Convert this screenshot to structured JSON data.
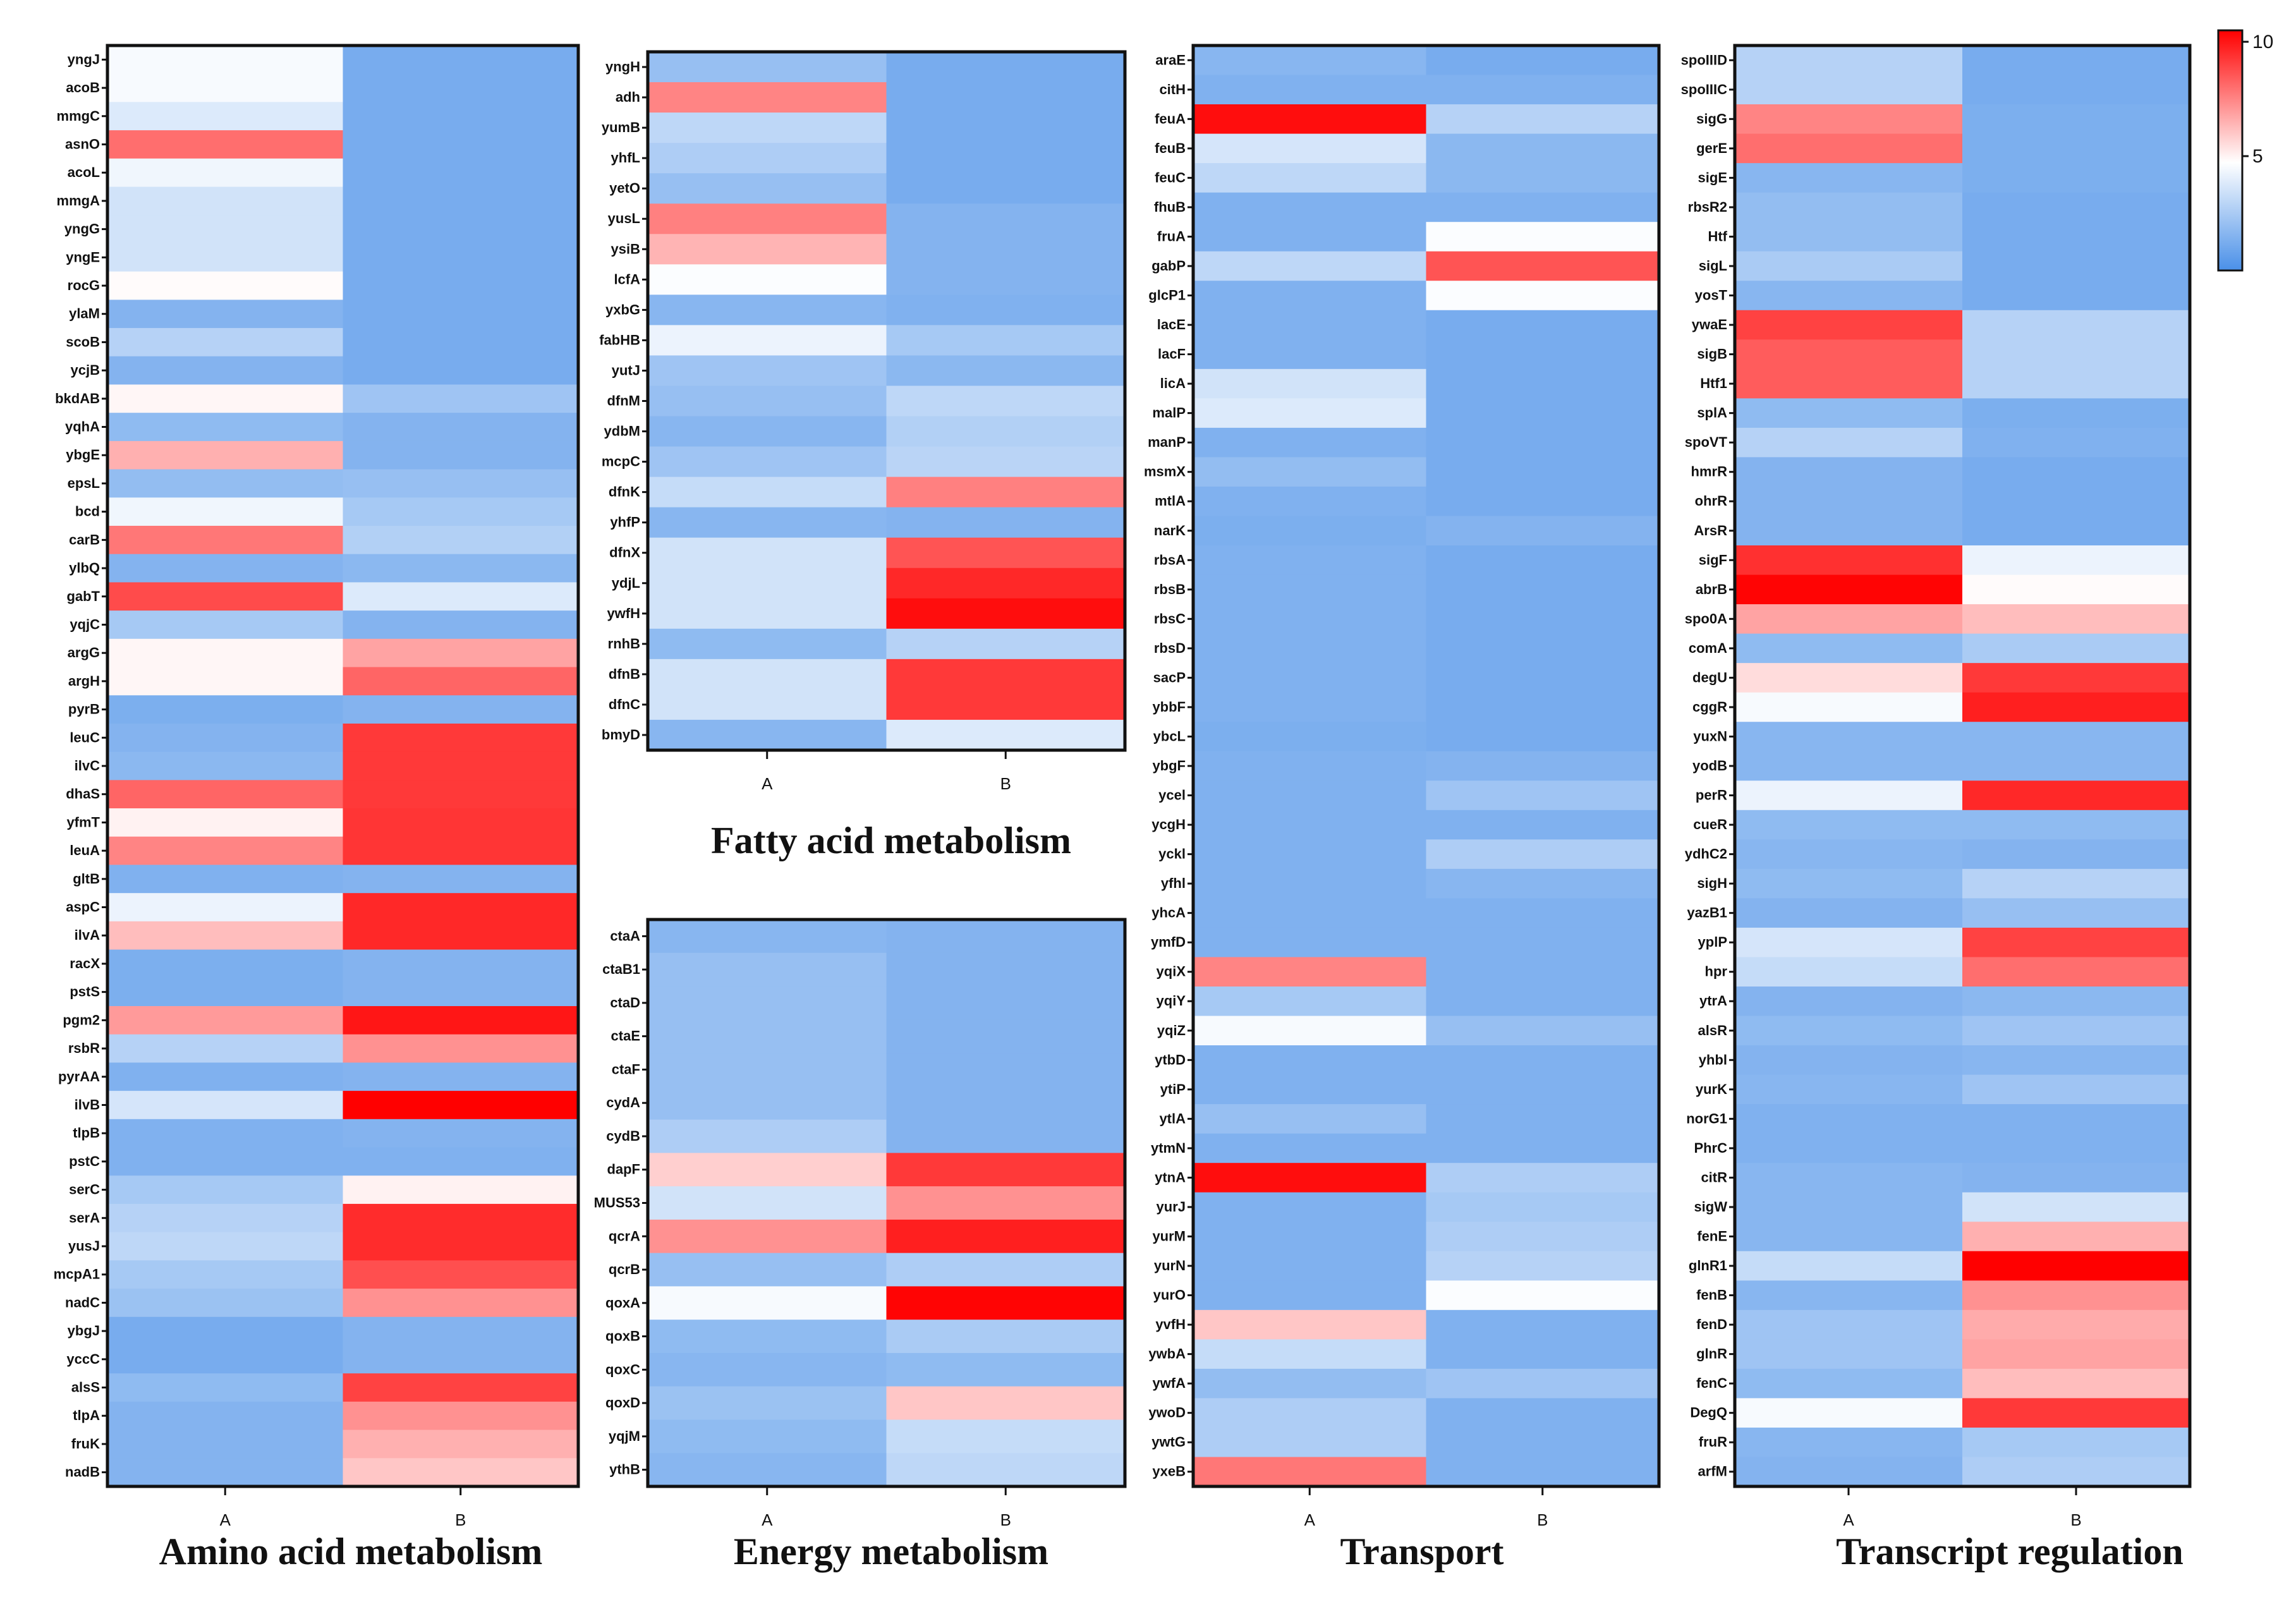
{
  "chart_data": {
    "type": "heatmap",
    "columns": [
      "A",
      "B"
    ],
    "colorbar": {
      "min": 0,
      "max": 10.5,
      "tick_labels": [
        "5",
        "10"
      ],
      "tick_values": [
        5,
        10
      ],
      "low_color": "#4a90e8",
      "mid_color": "#ffffff",
      "high_color": "#ff0000"
    },
    "panels": [
      {
        "id": "amino",
        "title": "Amino acid metabolism",
        "genes": [
          "yngJ",
          "acoB",
          "mmgC",
          "asnO",
          "acoL",
          "mmgA",
          "yngG",
          "yngE",
          "rocG",
          "ylaM",
          "scoB",
          "ycjB",
          "bkdAB",
          "yqhA",
          "ybgE",
          "epsL",
          "bcd",
          "carB",
          "ylbQ",
          "gabT",
          "yqjC",
          "argG",
          "argH",
          "pyrB",
          "leuC",
          "ilvC",
          "dhaS",
          "yfmT",
          "leuA",
          "gltB",
          "aspC",
          "ilvA",
          "racX",
          "pstS",
          "pgm2",
          "rsbR",
          "pyrAA",
          "ilvB",
          "tlpB",
          "pstC",
          "serC",
          "serA",
          "yusJ",
          "mcpA1",
          "nadC",
          "ybgJ",
          "yccC",
          "alsS",
          "tlpA",
          "fruK",
          "nadB"
        ],
        "A": [
          4.5,
          4.5,
          3.8,
          8.0,
          4.3,
          3.5,
          3.5,
          3.5,
          4.8,
          1.5,
          2.8,
          1.5,
          4.9,
          1.8,
          6.5,
          1.9,
          4.3,
          7.8,
          1.5,
          8.8,
          2.4,
          4.9,
          4.9,
          1.3,
          1.5,
          1.7,
          8.2,
          5.0,
          7.5,
          1.4,
          4.2,
          6.2,
          1.3,
          1.3,
          7.0,
          2.8,
          1.4,
          3.6,
          1.4,
          1.4,
          2.4,
          2.8,
          3.0,
          2.4,
          2.1,
          1.2,
          1.2,
          1.8,
          1.5,
          1.5,
          1.5
        ],
        "B": [
          1.2,
          1.2,
          1.2,
          1.2,
          1.2,
          1.2,
          1.2,
          1.2,
          1.2,
          1.2,
          1.2,
          1.2,
          2.2,
          1.5,
          1.5,
          2.0,
          2.4,
          2.7,
          1.7,
          3.8,
          1.5,
          6.8,
          8.2,
          1.5,
          9.2,
          9.2,
          9.2,
          9.3,
          9.3,
          1.5,
          9.6,
          9.6,
          1.5,
          1.5,
          10.0,
          7.2,
          1.5,
          10.5,
          1.5,
          1.4,
          5.0,
          9.5,
          9.5,
          8.7,
          7.2,
          1.5,
          1.5,
          9.0,
          7.2,
          6.5,
          6.0
        ]
      },
      {
        "id": "fatty",
        "title": "Fatty acid metabolism",
        "genes": [
          "yngH",
          "adh",
          "yumB",
          "yhfL",
          "yetO",
          "yusL",
          "ysiB",
          "lcfA",
          "yxbG",
          "fabHB",
          "yutJ",
          "dfnM",
          "ydbM",
          "mcpC",
          "dfnK",
          "yhfP",
          "dfnX",
          "ydjL",
          "ywfH",
          "rnhB",
          "dfnB",
          "dfnC",
          "bmyD"
        ],
        "A": [
          2.0,
          7.5,
          3.0,
          2.6,
          2.0,
          7.6,
          6.4,
          4.6,
          1.6,
          4.2,
          2.2,
          2.0,
          1.6,
          2.2,
          3.2,
          1.6,
          3.5,
          3.5,
          3.5,
          1.8,
          3.5,
          3.5,
          1.6
        ],
        "B": [
          1.2,
          1.2,
          1.2,
          1.2,
          1.2,
          1.5,
          1.5,
          1.5,
          1.4,
          2.4,
          1.7,
          3.0,
          2.7,
          2.9,
          7.6,
          1.5,
          8.6,
          9.6,
          10.2,
          2.8,
          9.2,
          9.2,
          3.8
        ]
      },
      {
        "id": "energy",
        "title": "Energy metabolism",
        "genes": [
          "ctaA",
          "ctaB1",
          "ctaD",
          "ctaE",
          "ctaF",
          "cydA",
          "cydB",
          "dapF",
          "MUS53",
          "qcrA",
          "qcrB",
          "qoxA",
          "qoxB",
          "qoxC",
          "qoxD",
          "yqjM",
          "ythB"
        ],
        "A": [
          1.6,
          2.0,
          2.0,
          2.0,
          2.0,
          2.0,
          2.6,
          5.8,
          3.5,
          7.2,
          2.0,
          4.5,
          1.8,
          1.6,
          2.1,
          1.8,
          1.6
        ],
        "B": [
          1.5,
          1.5,
          1.5,
          1.5,
          1.5,
          1.5,
          1.5,
          9.2,
          7.2,
          9.8,
          2.6,
          10.4,
          2.5,
          1.8,
          6.0,
          3.2,
          3.0
        ]
      },
      {
        "id": "transport",
        "title": "Transport",
        "genes": [
          "araE",
          "citH",
          "feuA",
          "feuB",
          "feuC",
          "fhuB",
          "fruA",
          "gabP",
          "glcP1",
          "lacE",
          "lacF",
          "licA",
          "malP",
          "manP",
          "msmX",
          "mtlA",
          "narK",
          "rbsA",
          "rbsB",
          "rbsC",
          "rbsD",
          "sacP",
          "ybbF",
          "ybcL",
          "ybgF",
          "ycel",
          "ycgH",
          "yckl",
          "yfhl",
          "yhcA",
          "ymfD",
          "yqiX",
          "yqiY",
          "yqiZ",
          "ytbD",
          "ytiP",
          "ytlA",
          "ytmN",
          "ytnA",
          "yurJ",
          "yurM",
          "yurN",
          "yurO",
          "yvfH",
          "ywbA",
          "ywfA",
          "ywoD",
          "ywtG",
          "yxeB"
        ],
        "A": [
          1.6,
          1.4,
          10.2,
          3.6,
          3.0,
          1.4,
          1.4,
          3.0,
          1.4,
          1.4,
          1.4,
          3.5,
          3.8,
          1.4,
          1.9,
          1.4,
          1.3,
          1.4,
          1.4,
          1.4,
          1.4,
          1.4,
          1.4,
          1.3,
          1.4,
          1.4,
          1.4,
          1.4,
          1.4,
          1.4,
          1.4,
          7.5,
          2.4,
          4.5,
          1.4,
          1.4,
          2.0,
          1.4,
          10.2,
          1.4,
          1.4,
          1.4,
          1.4,
          6.0,
          3.2,
          1.9,
          2.6,
          2.6,
          7.8
        ],
        "B": [
          1.2,
          1.4,
          2.8,
          1.7,
          1.7,
          1.4,
          4.6,
          8.6,
          4.6,
          1.2,
          1.2,
          1.2,
          1.2,
          1.2,
          1.2,
          1.2,
          1.5,
          1.2,
          1.2,
          1.2,
          1.2,
          1.2,
          1.2,
          1.2,
          1.5,
          2.2,
          1.4,
          2.6,
          1.6,
          1.4,
          1.4,
          1.4,
          1.4,
          2.0,
          1.4,
          1.4,
          1.4,
          1.4,
          2.6,
          2.4,
          2.6,
          2.8,
          4.6,
          1.4,
          1.4,
          2.2,
          1.4,
          1.4,
          1.4
        ]
      },
      {
        "id": "regulation",
        "title": "Transcript regulation",
        "genes": [
          "spoIIID",
          "spoIIIC",
          "sigG",
          "gerE",
          "sigE",
          "rbsR2",
          "Htf",
          "sigL",
          "yosT",
          "ywaE",
          "sigB",
          "Htf1",
          "splA",
          "spoVT",
          "hmrR",
          "ohrR",
          "ArsR",
          "sigF",
          "abrB",
          "spo0A",
          "comA",
          "degU",
          "cggR",
          "yuxN",
          "yodB",
          "perR",
          "cueR",
          "ydhC2",
          "sigH",
          "yazB1",
          "yplP",
          "hpr",
          "ytrA",
          "alsR",
          "yhbl",
          "yurK",
          "norG1",
          "PhrC",
          "citR",
          "sigW",
          "fenE",
          "glnR1",
          "fenB",
          "fenD",
          "glnR",
          "fenC",
          "DegQ",
          "fruR",
          "arfM"
        ],
        "A": [
          2.8,
          2.8,
          7.5,
          8.0,
          1.6,
          1.9,
          1.9,
          2.5,
          1.6,
          9.0,
          8.4,
          8.4,
          1.8,
          2.8,
          1.5,
          1.5,
          1.5,
          9.4,
          10.4,
          6.8,
          1.8,
          5.5,
          4.5,
          1.6,
          1.6,
          4.2,
          1.8,
          1.6,
          1.8,
          1.5,
          3.6,
          3.2,
          1.5,
          1.8,
          1.5,
          1.6,
          1.4,
          1.4,
          1.6,
          1.6,
          1.6,
          3.2,
          1.6,
          2.2,
          2.2,
          1.8,
          4.5,
          1.6,
          1.5
        ],
        "B": [
          1.2,
          1.2,
          1.3,
          1.3,
          1.3,
          1.2,
          1.2,
          1.2,
          1.2,
          2.8,
          2.8,
          2.8,
          1.3,
          1.4,
          1.2,
          1.2,
          1.2,
          4.2,
          4.8,
          6.2,
          2.5,
          9.2,
          9.8,
          1.6,
          1.6,
          9.6,
          1.8,
          1.5,
          2.8,
          2.0,
          9.0,
          8.0,
          1.7,
          2.2,
          1.6,
          2.2,
          1.4,
          1.4,
          1.5,
          3.5,
          6.5,
          10.5,
          7.2,
          6.6,
          6.8,
          6.2,
          9.2,
          2.4,
          2.6
        ]
      }
    ]
  }
}
